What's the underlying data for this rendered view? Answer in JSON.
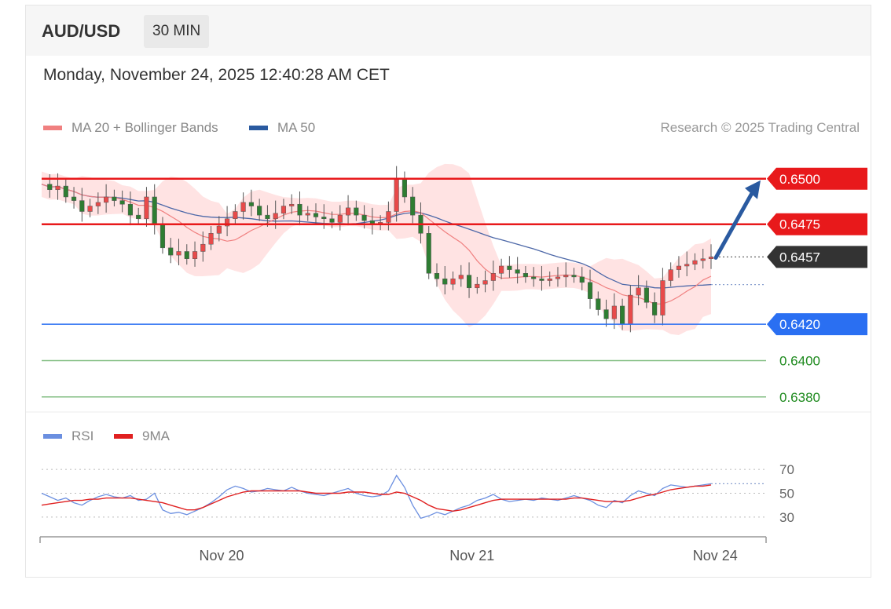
{
  "header": {
    "symbol": "AUD/USD",
    "timeframe": "30 MIN",
    "datetime": "Monday, November 24, 2025 12:40:28 AM CET"
  },
  "legend": {
    "ma20_label": "MA 20 + Bollinger Bands",
    "ma50_label": "MA 50",
    "copyright": "Research © 2025 Trading Central"
  },
  "rsi_legend": {
    "rsi_label": "RSI",
    "ma9_label": "9MA"
  },
  "colors": {
    "resistance": "#e8191b",
    "support": "#2a6ff2",
    "target": "#1e8a1e",
    "current": "#333333",
    "ma50": "#4d68a8",
    "ma20": "#f08080",
    "band": "#ffd9d9",
    "up_candle": "#e84a4a",
    "down_candle": "#2e7d32",
    "arrow": "#2a5aa0",
    "rsi": "#6b8fe0",
    "rsi_ma": "#e02020"
  },
  "chart_data": [
    {
      "type": "candlestick",
      "title": "AUD/USD",
      "timeframe": "30 MIN",
      "ylim": [
        0.6373,
        0.6512
      ],
      "x_ticks": [
        "Nov 20",
        "Nov 21",
        "Nov 24"
      ],
      "current_price": 0.6457,
      "levels": [
        {
          "value": 0.65,
          "label": "0.6500",
          "kind": "resistance"
        },
        {
          "value": 0.6475,
          "label": "0.6475",
          "kind": "resistance"
        },
        {
          "value": 0.6457,
          "label": "0.6457",
          "kind": "current"
        },
        {
          "value": 0.642,
          "label": "0.6420",
          "kind": "support"
        },
        {
          "value": 0.64,
          "label": "0.6400",
          "kind": "target"
        },
        {
          "value": 0.638,
          "label": "0.6380",
          "kind": "target"
        }
      ],
      "arrow": {
        "from": 0.6457,
        "to": 0.65
      },
      "series": [
        {
          "name": "MA 20 + Bollinger Bands",
          "type": "band"
        },
        {
          "name": "MA 50",
          "type": "line"
        }
      ],
      "close_path": [
        0.6497,
        0.6494,
        0.6496,
        0.649,
        0.6488,
        0.6482,
        0.6485,
        0.6487,
        0.649,
        0.6488,
        0.6486,
        0.648,
        0.6478,
        0.649,
        0.6475,
        0.6462,
        0.6458,
        0.646,
        0.6456,
        0.646,
        0.6464,
        0.647,
        0.6474,
        0.6478,
        0.6482,
        0.6487,
        0.6485,
        0.648,
        0.6478,
        0.6481,
        0.6485,
        0.6486,
        0.648,
        0.6481,
        0.6479,
        0.6478,
        0.6476,
        0.648,
        0.6484,
        0.648,
        0.6477,
        0.6475,
        0.6476,
        0.6482,
        0.65,
        0.649,
        0.648,
        0.647,
        0.6448,
        0.6445,
        0.6442,
        0.6445,
        0.6447,
        0.644,
        0.6442,
        0.6444,
        0.6448,
        0.6452,
        0.645,
        0.6448,
        0.6446,
        0.6445,
        0.6444,
        0.6445,
        0.6446,
        0.6447,
        0.6446,
        0.6443,
        0.6434,
        0.6428,
        0.6423,
        0.643,
        0.642,
        0.6436,
        0.644,
        0.6432,
        0.6425,
        0.6444,
        0.645,
        0.6452,
        0.6453,
        0.6455,
        0.6456,
        0.6457
      ]
    },
    {
      "type": "line",
      "title": "RSI",
      "ylim": [
        20,
        80
      ],
      "y_ticks": [
        70,
        50,
        30
      ],
      "series": [
        {
          "name": "RSI",
          "values": [
            50,
            47,
            44,
            46,
            42,
            40,
            44,
            47,
            49,
            47,
            46,
            48,
            44,
            45,
            50,
            36,
            33,
            34,
            32,
            35,
            38,
            42,
            47,
            53,
            56,
            54,
            51,
            52,
            54,
            53,
            52,
            55,
            52,
            50,
            49,
            48,
            50,
            52,
            54,
            50,
            48,
            47,
            48,
            52,
            65,
            55,
            40,
            29,
            31,
            34,
            32,
            35,
            38,
            40,
            44,
            46,
            49,
            45,
            43,
            44,
            45,
            44,
            46,
            45,
            44,
            46,
            48,
            46,
            44,
            40,
            38,
            44,
            42,
            48,
            52,
            50,
            48,
            54,
            57,
            56,
            55,
            56,
            57,
            58
          ]
        },
        {
          "name": "9MA",
          "values": [
            40,
            41,
            42,
            43,
            44,
            44,
            45,
            45,
            46,
            46,
            46,
            46,
            45,
            44,
            43,
            42,
            40,
            38,
            36,
            36,
            38,
            41,
            44,
            47,
            49,
            51,
            52,
            52,
            52,
            52,
            52,
            52,
            52,
            51,
            50,
            50,
            50,
            50,
            51,
            51,
            51,
            50,
            49,
            49,
            51,
            50,
            47,
            44,
            40,
            37,
            36,
            35,
            36,
            38,
            40,
            42,
            44,
            45,
            45,
            45,
            45,
            45,
            45,
            45,
            45,
            45,
            46,
            46,
            45,
            44,
            43,
            43,
            43,
            44,
            46,
            48,
            49,
            51,
            53,
            54,
            55,
            56,
            56,
            57
          ]
        }
      ]
    }
  ]
}
